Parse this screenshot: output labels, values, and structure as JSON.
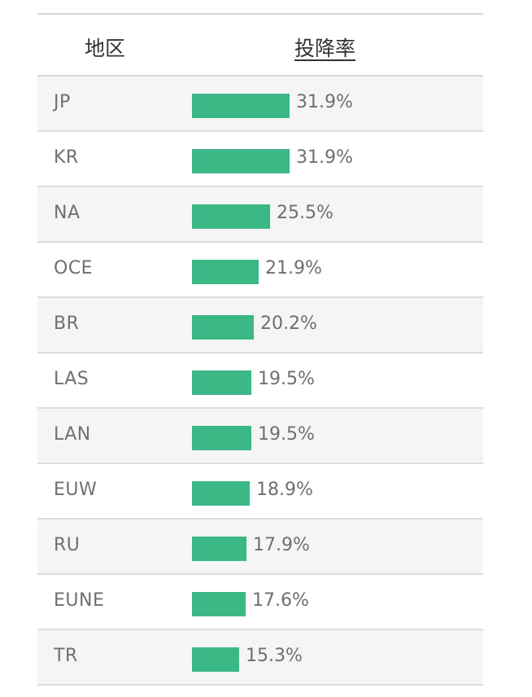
{
  "header": {
    "region_label": "地区",
    "rate_label": "投降率"
  },
  "colors": {
    "bar": "#3cb887"
  },
  "chart_data": {
    "type": "bar",
    "title": "",
    "categories": [
      "JP",
      "KR",
      "NA",
      "OCE",
      "BR",
      "LAS",
      "LAN",
      "EUW",
      "RU",
      "EUNE",
      "TR"
    ],
    "values": [
      31.9,
      31.9,
      25.5,
      21.9,
      20.2,
      19.5,
      19.5,
      18.9,
      17.9,
      17.6,
      15.3
    ],
    "value_labels": [
      "31.9%",
      "31.9%",
      "25.5%",
      "21.9%",
      "20.2%",
      "19.5%",
      "19.5%",
      "18.9%",
      "17.9%",
      "17.6%",
      "15.3%"
    ],
    "xlabel": "地区",
    "ylabel": "投降率",
    "unit": "%"
  }
}
